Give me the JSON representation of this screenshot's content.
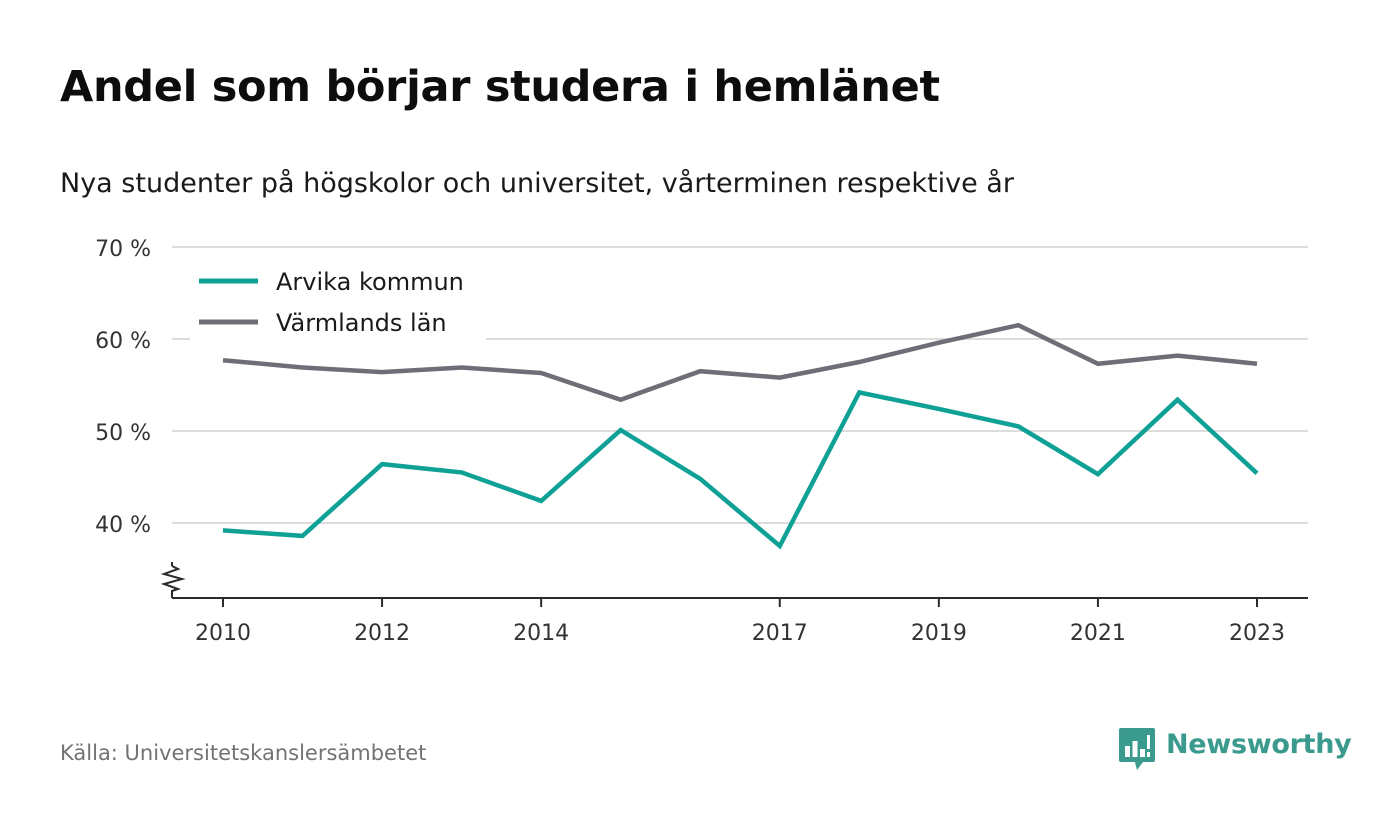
{
  "title": "Andel som börjar studera i hemlänet",
  "subtitle": "Nya studenter på högskolor och universitet, vårterminen respektive år",
  "source": "Källa: Universitetskanslersämbetet",
  "brand": {
    "name": "Newsworthy",
    "icon": "newsworthy-logo-icon",
    "color": "#3a9a8e"
  },
  "chart_data": {
    "type": "line",
    "title": "Andel som börjar studera i hemlänet",
    "subtitle": "Nya studenter på högskolor och universitet, vårterminen respektive år",
    "x": [
      2010,
      2011,
      2012,
      2013,
      2014,
      2015,
      2016,
      2017,
      2018,
      2019,
      2020,
      2021,
      2022,
      2023
    ],
    "x_ticks": [
      2010,
      2012,
      2014,
      2017,
      2019,
      2021,
      2023
    ],
    "x_tick_labels": [
      "2010",
      "2012",
      "2014",
      "2017",
      "2019",
      "2021",
      "2023"
    ],
    "y_ticks": [
      40,
      50,
      60,
      70
    ],
    "y_tick_labels": [
      "40 %",
      "50 %",
      "60 %",
      "70 %"
    ],
    "ylim": [
      32,
      70
    ],
    "y_axis_break": true,
    "grid": true,
    "legend_position": "top-left",
    "series": [
      {
        "name": "Arvika kommun",
        "color": "#0fa196",
        "values": [
          39.2,
          38.6,
          46.4,
          45.5,
          42.4,
          50.1,
          44.8,
          37.5,
          54.2,
          52.4,
          50.5,
          45.3,
          53.4,
          45.4
        ]
      },
      {
        "name": "Värmlands län",
        "color": "#6f6e76",
        "values": [
          57.7,
          56.9,
          56.4,
          56.9,
          56.3,
          53.4,
          56.5,
          55.8,
          57.5,
          59.6,
          61.5,
          57.3,
          58.2,
          57.3
        ]
      }
    ]
  }
}
